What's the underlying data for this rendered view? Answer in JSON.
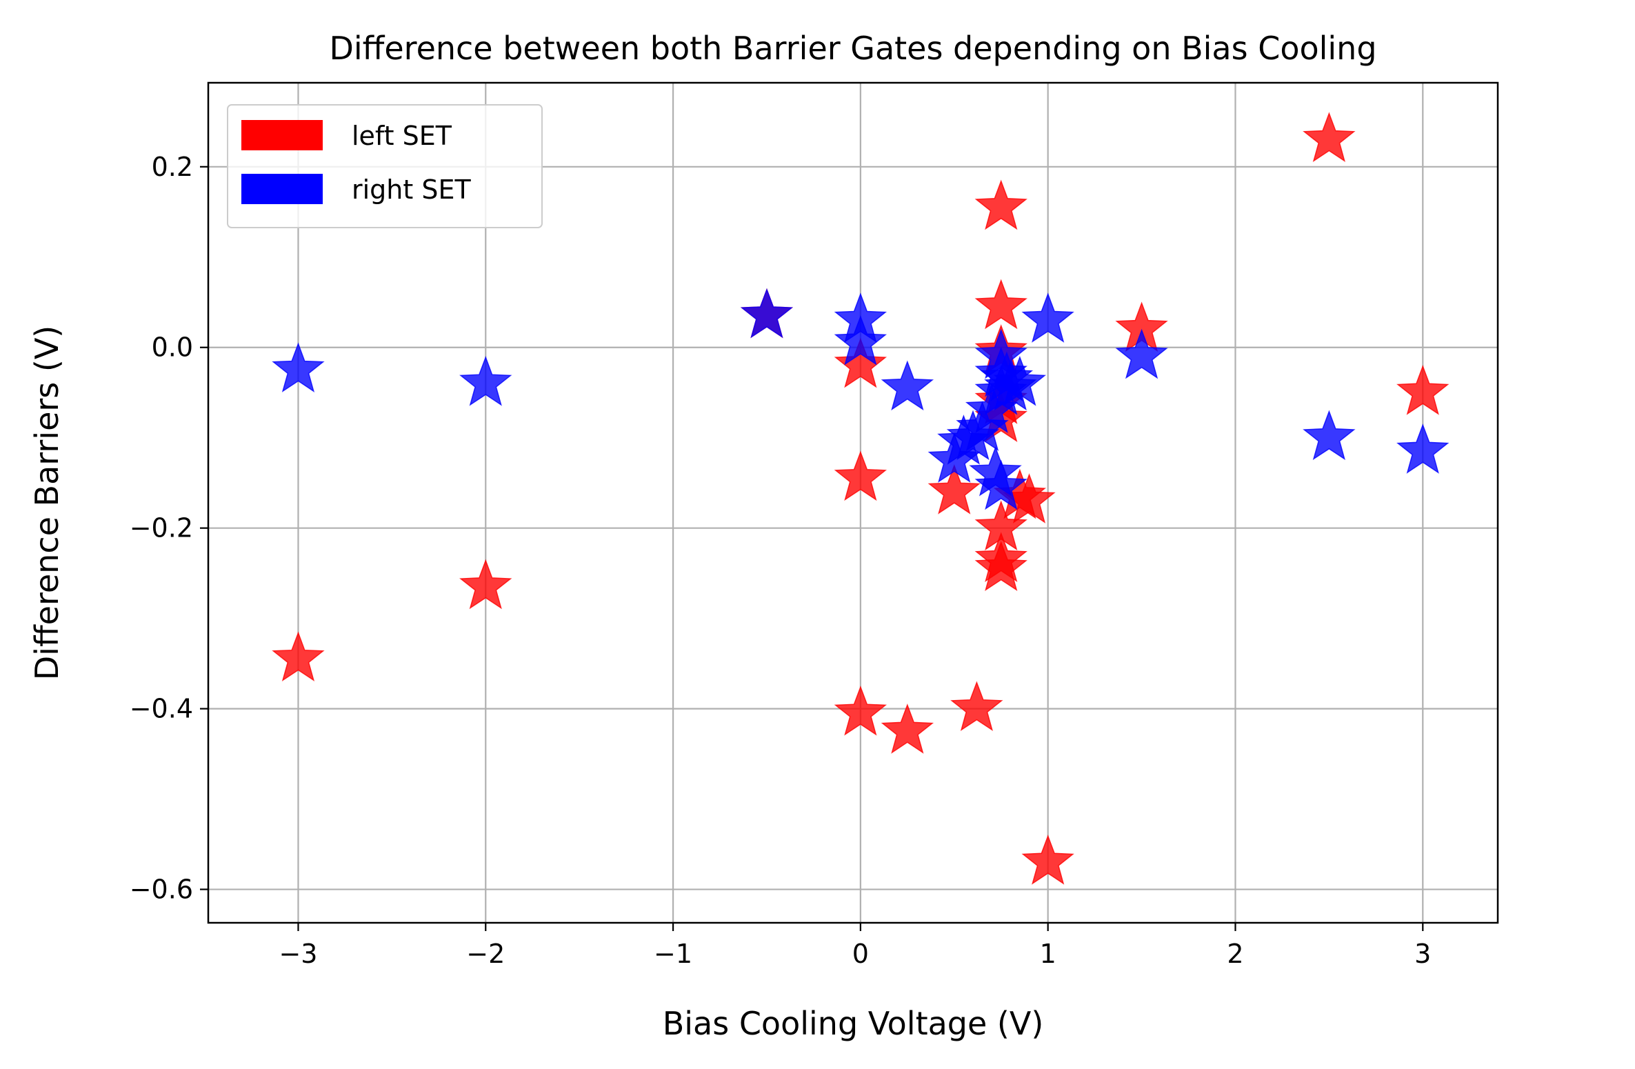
{
  "chart_data": {
    "type": "scatter",
    "title": "Difference between both Barrier Gates depending on Bias Cooling",
    "xlabel": "Bias Cooling Voltage (V)",
    "ylabel": "Difference Barriers (V)",
    "xlim": [
      -3.48,
      3.4
    ],
    "ylim": [
      -0.637,
      0.293
    ],
    "xticks": [
      -3,
      -2,
      -1,
      0,
      1,
      2,
      3
    ],
    "xtick_labels": [
      "−3",
      "−2",
      "−1",
      "0",
      "1",
      "2",
      "3"
    ],
    "yticks": [
      0.2,
      0.0,
      -0.2,
      -0.4,
      -0.6
    ],
    "ytick_labels": [
      "0.2",
      "0.0",
      "−0.2",
      "−0.4",
      "−0.6"
    ],
    "grid": true,
    "legend": {
      "position": "upper-left",
      "entries": [
        {
          "label": "left SET",
          "color": "#ff0000"
        },
        {
          "label": "right SET",
          "color": "#0000ff"
        }
      ]
    },
    "marker": "star",
    "series": [
      {
        "name": "left SET",
        "color": "#ff0000",
        "points": [
          [
            -3,
            -0.345
          ],
          [
            -2,
            -0.265
          ],
          [
            -0.5,
            0.035
          ],
          [
            0,
            -0.02
          ],
          [
            0,
            -0.145
          ],
          [
            0,
            -0.405
          ],
          [
            0.25,
            -0.425
          ],
          [
            0.5,
            -0.16
          ],
          [
            0.62,
            -0.4
          ],
          [
            0.75,
            0.155
          ],
          [
            0.75,
            0.045
          ],
          [
            0.75,
            -0.005
          ],
          [
            0.75,
            -0.06
          ],
          [
            0.75,
            -0.08
          ],
          [
            0.75,
            -0.2
          ],
          [
            0.75,
            -0.235
          ],
          [
            0.75,
            -0.245
          ],
          [
            0.85,
            -0.165
          ],
          [
            0.9,
            -0.17
          ],
          [
            1.0,
            -0.57
          ],
          [
            1.5,
            0.02
          ],
          [
            2.5,
            0.23
          ],
          [
            3.0,
            -0.05
          ]
        ]
      },
      {
        "name": "right SET",
        "color": "#0000ff",
        "points": [
          [
            -3,
            -0.025
          ],
          [
            -2,
            -0.04
          ],
          [
            -0.5,
            0.035
          ],
          [
            0,
            0.03
          ],
          [
            0,
            0.005
          ],
          [
            0.25,
            -0.045
          ],
          [
            0.5,
            -0.125
          ],
          [
            0.55,
            -0.105
          ],
          [
            0.6,
            -0.1
          ],
          [
            0.65,
            -0.09
          ],
          [
            0.7,
            -0.07
          ],
          [
            0.72,
            -0.14
          ],
          [
            0.75,
            -0.01
          ],
          [
            0.75,
            -0.03
          ],
          [
            0.75,
            -0.05
          ],
          [
            0.75,
            -0.155
          ],
          [
            0.78,
            -0.035
          ],
          [
            0.8,
            -0.045
          ],
          [
            0.85,
            -0.04
          ],
          [
            1.0,
            0.03
          ],
          [
            1.5,
            -0.01
          ],
          [
            2.5,
            -0.1
          ],
          [
            3.0,
            -0.115
          ]
        ]
      }
    ]
  }
}
